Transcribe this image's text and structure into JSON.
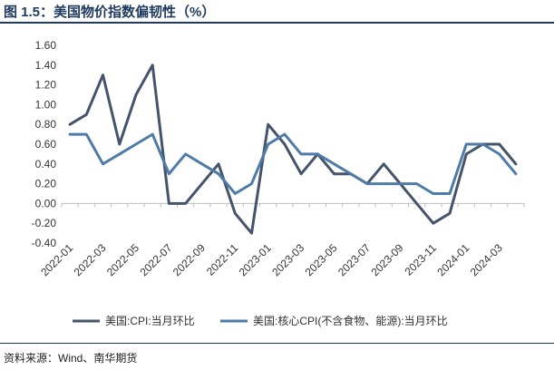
{
  "figure": {
    "title": "图 1.5：美国物价指数偏韧性（%）",
    "source": "资料来源：Wind、南华期货"
  },
  "chart_data": {
    "type": "line",
    "categories": [
      "2022-01",
      "2022-02",
      "2022-03",
      "2022-04",
      "2022-05",
      "2022-06",
      "2022-07",
      "2022-08",
      "2022-09",
      "2022-10",
      "2022-11",
      "2022-12",
      "2023-01",
      "2023-02",
      "2023-03",
      "2023-04",
      "2023-05",
      "2023-06",
      "2023-07",
      "2023-08",
      "2023-09",
      "2023-10",
      "2023-11",
      "2023-12",
      "2024-01",
      "2024-02",
      "2024-03",
      "2024-04"
    ],
    "tick_labels": [
      "2022-01",
      "2022-03",
      "2022-05",
      "2022-07",
      "2022-09",
      "2022-11",
      "2023-01",
      "2023-03",
      "2023-05",
      "2023-07",
      "2023-09",
      "2023-11",
      "2024-01",
      "2024-03"
    ],
    "ylim": [
      -0.4,
      1.6
    ],
    "yticks": [
      "1.60",
      "1.40",
      "1.20",
      "1.00",
      "0.80",
      "0.60",
      "0.40",
      "0.20",
      "0.00",
      "-0.20",
      "-0.40"
    ],
    "legend_position": "bottom",
    "series": [
      {
        "name": "美国:CPI:当月环比",
        "color": "#44546a",
        "values": [
          0.8,
          0.9,
          1.3,
          0.6,
          1.1,
          1.4,
          0.0,
          0.0,
          0.2,
          0.4,
          -0.1,
          -0.3,
          0.8,
          0.6,
          0.3,
          0.5,
          0.3,
          0.3,
          0.2,
          0.4,
          0.2,
          0.0,
          -0.2,
          -0.1,
          0.5,
          0.6,
          0.6,
          0.4
        ]
      },
      {
        "name": "美国:核心CPI(不含食物、能源):当月环比",
        "color": "#4f7ba8",
        "values": [
          0.7,
          0.7,
          0.4,
          0.5,
          0.6,
          0.7,
          0.3,
          0.5,
          0.4,
          0.3,
          0.1,
          0.2,
          0.6,
          0.7,
          0.5,
          0.5,
          0.4,
          0.3,
          0.2,
          0.2,
          0.2,
          0.2,
          0.1,
          0.1,
          0.6,
          0.6,
          0.5,
          0.3
        ]
      }
    ]
  }
}
